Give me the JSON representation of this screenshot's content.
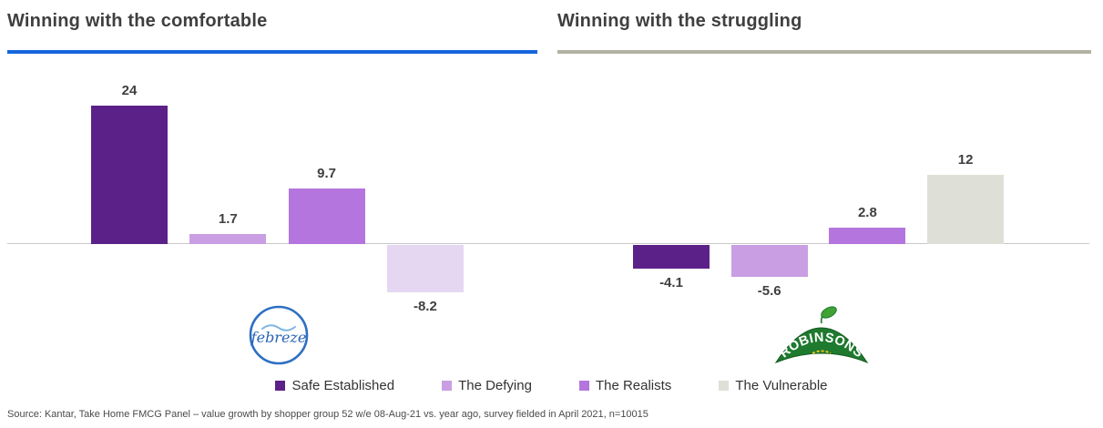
{
  "headers": [
    {
      "title": "Winning with the comfortable",
      "underline_color": "#1565dc"
    },
    {
      "title": "Winning with the struggling",
      "underline_color": "#b2b2a4"
    }
  ],
  "chart_data": [
    {
      "type": "bar",
      "title": "Winning with the comfortable",
      "brand": "febreze",
      "categories": [
        "Safe Established",
        "The Defying",
        "The Realists",
        "The Vulnerable"
      ],
      "values": [
        24,
        1.7,
        9.7,
        -8.2
      ],
      "labels": [
        "24",
        "1.7",
        "9.7",
        "-8.2"
      ],
      "bar_colors": [
        "#5c2189",
        "#c99ee3",
        "#b476de",
        "#e5d7f1"
      ],
      "xlabel": "",
      "ylabel": "",
      "ylim": [
        -10,
        26
      ],
      "grid": false,
      "baseline": 0
    },
    {
      "type": "bar",
      "title": "Winning with the struggling",
      "brand": "ROBINSONS",
      "categories": [
        "Safe Established",
        "The Defying",
        "The Realists",
        "The Vulnerable"
      ],
      "values": [
        -4.1,
        -5.6,
        2.8,
        12
      ],
      "labels": [
        "-4.1",
        "-5.6",
        "2.8",
        "12"
      ],
      "bar_colors": [
        "#5c2189",
        "#c99ee3",
        "#b476de",
        "#dedfd6"
      ],
      "xlabel": "",
      "ylabel": "",
      "ylim": [
        -10,
        26
      ],
      "grid": false,
      "baseline": 0
    }
  ],
  "legend": {
    "items": [
      {
        "label": "Safe Established",
        "color": "#5c2189"
      },
      {
        "label": "The Defying",
        "color": "#c99ee3"
      },
      {
        "label": "The Realists",
        "color": "#b476de"
      },
      {
        "label": "The Vulnerable",
        "color": "#dedfd6"
      }
    ]
  },
  "logos": {
    "febreze": "febreze",
    "robinsons": "ROBINSONS"
  },
  "source": "Source: Kantar, Take Home FMCG Panel – value growth by shopper group 52 w/e 08-Aug-21 vs. year ago, survey fielded in April 2021, n=10015"
}
